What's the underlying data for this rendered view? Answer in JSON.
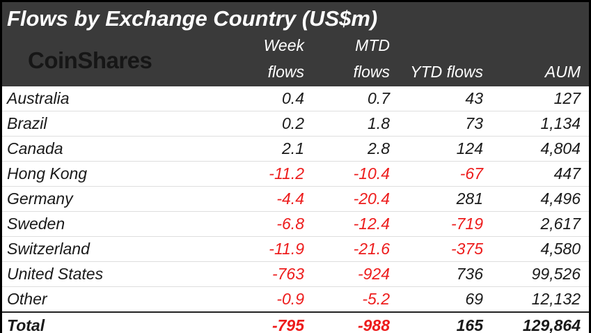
{
  "title": "Flows by Exchange Country (US$m)",
  "logo": {
    "text": "CoinShares"
  },
  "columns": {
    "week": [
      "Week",
      "flows"
    ],
    "mtd": [
      "MTD",
      "flows"
    ],
    "ytd": "YTD flows",
    "aum": "AUM"
  },
  "colors": {
    "header_bg": "#3a3a3a",
    "header_text": "#ffffff",
    "logo_text": "#161616",
    "body_text": "#1a1a1a",
    "negative": "#ed1c1c",
    "row_divider": "#dedede",
    "total_rule": "#222222",
    "frame_border": "#000000"
  },
  "chart_data": {
    "type": "table",
    "title": "Flows by Exchange Country (US$m)",
    "columns": [
      "Country",
      "Week flows",
      "MTD flows",
      "YTD flows",
      "AUM"
    ],
    "rows": [
      {
        "country": "Australia",
        "week": "0.4",
        "mtd": "0.7",
        "ytd": "43",
        "aum": "127",
        "is_total": false
      },
      {
        "country": "Brazil",
        "week": "0.2",
        "mtd": "1.8",
        "ytd": "73",
        "aum": "1,134",
        "is_total": false
      },
      {
        "country": "Canada",
        "week": "2.1",
        "mtd": "2.8",
        "ytd": "124",
        "aum": "4,804",
        "is_total": false
      },
      {
        "country": "Hong Kong",
        "week": "-11.2",
        "mtd": "-10.4",
        "ytd": "-67",
        "aum": "447",
        "is_total": false
      },
      {
        "country": "Germany",
        "week": "-4.4",
        "mtd": "-20.4",
        "ytd": "281",
        "aum": "4,496",
        "is_total": false
      },
      {
        "country": "Sweden",
        "week": "-6.8",
        "mtd": "-12.4",
        "ytd": "-719",
        "aum": "2,617",
        "is_total": false
      },
      {
        "country": "Switzerland",
        "week": "-11.9",
        "mtd": "-21.6",
        "ytd": "-375",
        "aum": "4,580",
        "is_total": false
      },
      {
        "country": "United States",
        "week": "-763",
        "mtd": "-924",
        "ytd": "736",
        "aum": "99,526",
        "is_total": false
      },
      {
        "country": "Other",
        "week": "-0.9",
        "mtd": "-5.2",
        "ytd": "69",
        "aum": "12,132",
        "is_total": false
      },
      {
        "country": "Total",
        "week": "-795",
        "mtd": "-988",
        "ytd": "165",
        "aum": "129,864",
        "is_total": true
      }
    ]
  }
}
